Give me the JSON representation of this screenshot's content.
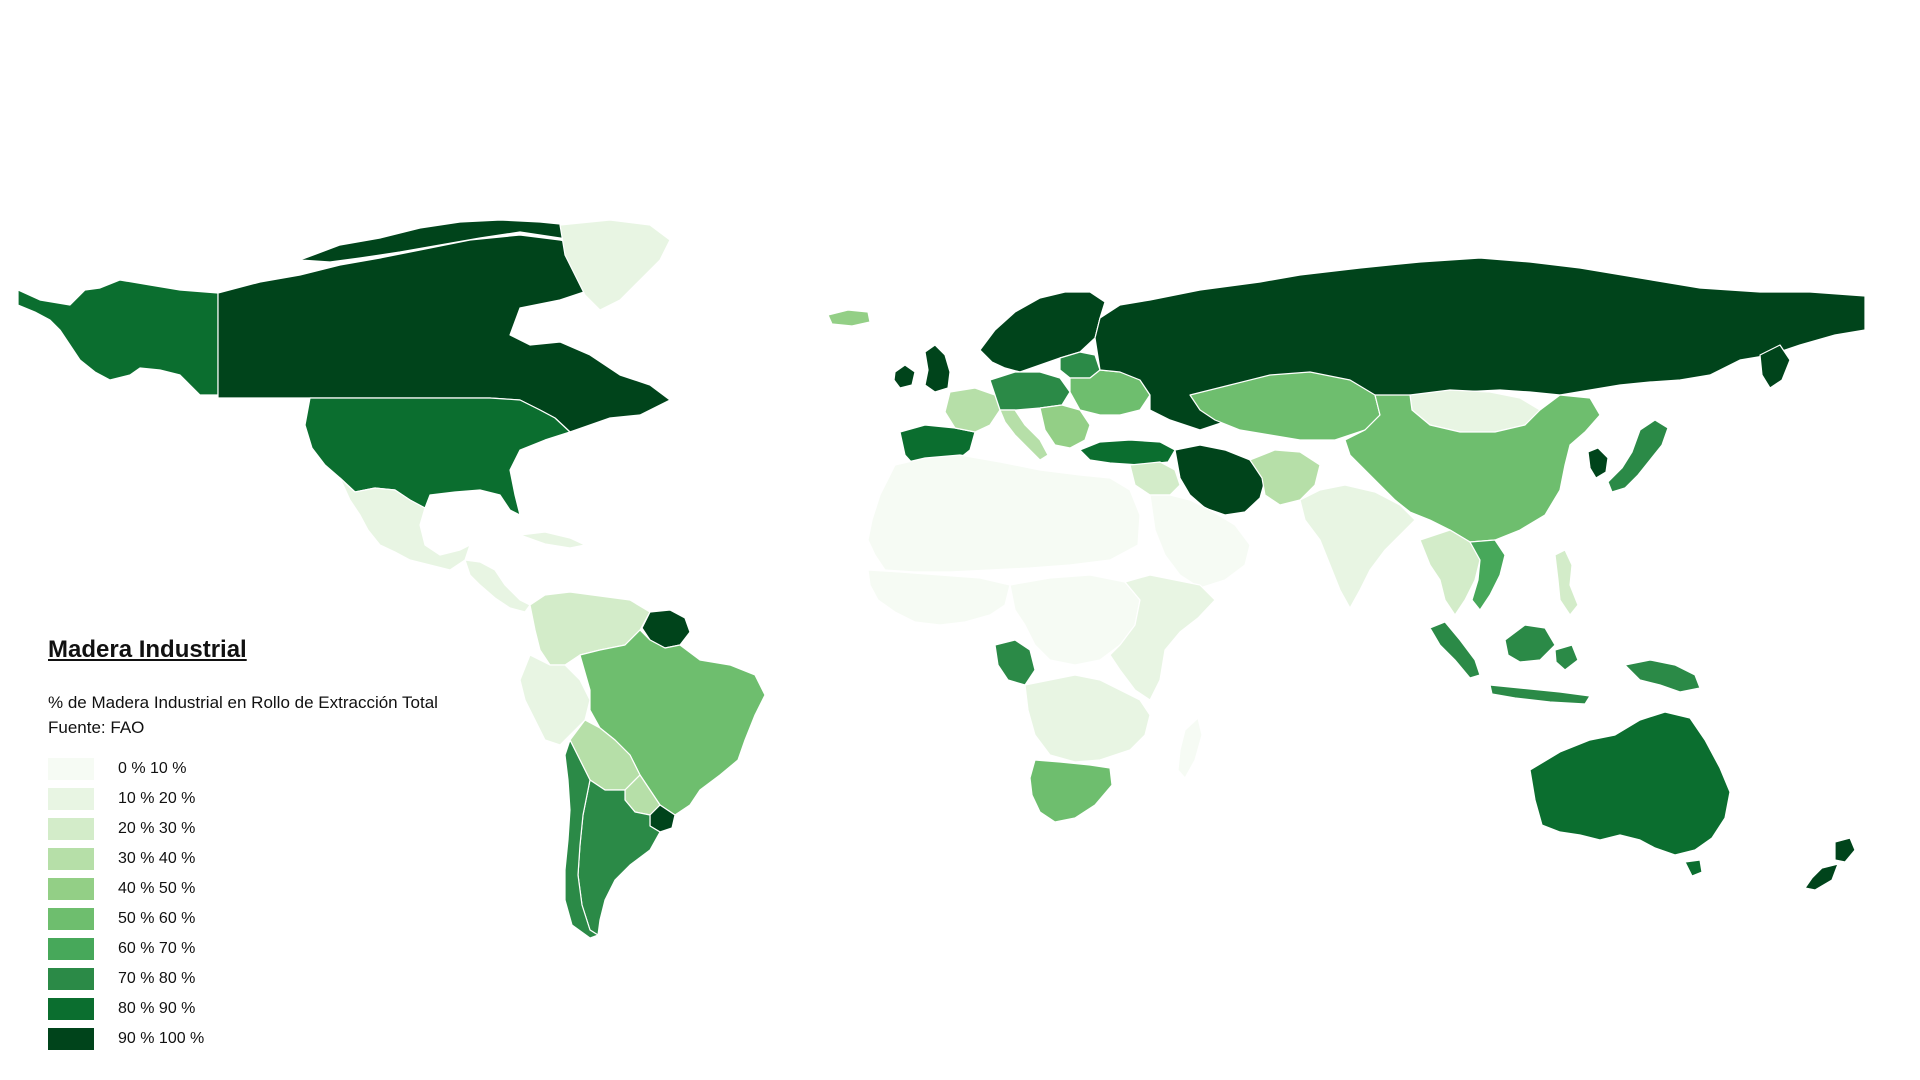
{
  "legend": {
    "title": "Madera Industrial",
    "subtitle": "% de Madera Industrial en Rollo de Extracción Total",
    "source": "Fuente: FAO",
    "bins": [
      {
        "label": "0 % 10 %",
        "color": "#f6fbf4"
      },
      {
        "label": "10 % 20 %",
        "color": "#e8f5e3"
      },
      {
        "label": "20 % 30 %",
        "color": "#d3ecc9"
      },
      {
        "label": "30 % 40 %",
        "color": "#b6dfa8"
      },
      {
        "label": "40 % 50 %",
        "color": "#93cf86"
      },
      {
        "label": "50 % 60 %",
        "color": "#6ebe6e"
      },
      {
        "label": "60 % 70 %",
        "color": "#47a85a"
      },
      {
        "label": "70 % 80 %",
        "color": "#2b8a47"
      },
      {
        "label": "80 % 90 %",
        "color": "#0b6e2f"
      },
      {
        "label": "90 % 100 %",
        "color": "#00441b"
      }
    ]
  },
  "regions": {
    "greenland": 1,
    "alaska": 8,
    "canada": 9,
    "usa": 8,
    "mexico": 1,
    "central-america": 1,
    "caribbean": 1,
    "colombia-venezuela": 2,
    "guyanas": 9,
    "ecuador-peru": 1,
    "brazil": 5,
    "bolivia": 3,
    "paraguay": 3,
    "chile": 7,
    "argentina": 7,
    "uruguay": 9,
    "iceland": 4,
    "uk-ireland": 9,
    "iberia": 8,
    "france": 3,
    "central-europe": 7,
    "italy": 3,
    "balkans": 4,
    "fennoscandia": 9,
    "baltics": 7,
    "eastern-europe": 5,
    "russia": 9,
    "turkey": 8,
    "middle-east": 2,
    "iran-region": 9,
    "arabia": 0,
    "central-asia": 5,
    "afghanistan-pakistan": 3,
    "india": 1,
    "china": 5,
    "mongolia": 1,
    "korea": 9,
    "japan": 7,
    "southeast-asia": 2,
    "vietnam": 6,
    "malaysia-indonesia": 7,
    "philippines": 2,
    "png": 7,
    "north-africa": 0,
    "west-africa": 0,
    "central-africa": 0,
    "congo-gabon": 7,
    "east-africa": 1,
    "southern-africa": 1,
    "south-africa": 5,
    "madagascar": 0,
    "australia": 8,
    "new-zealand": 9
  }
}
